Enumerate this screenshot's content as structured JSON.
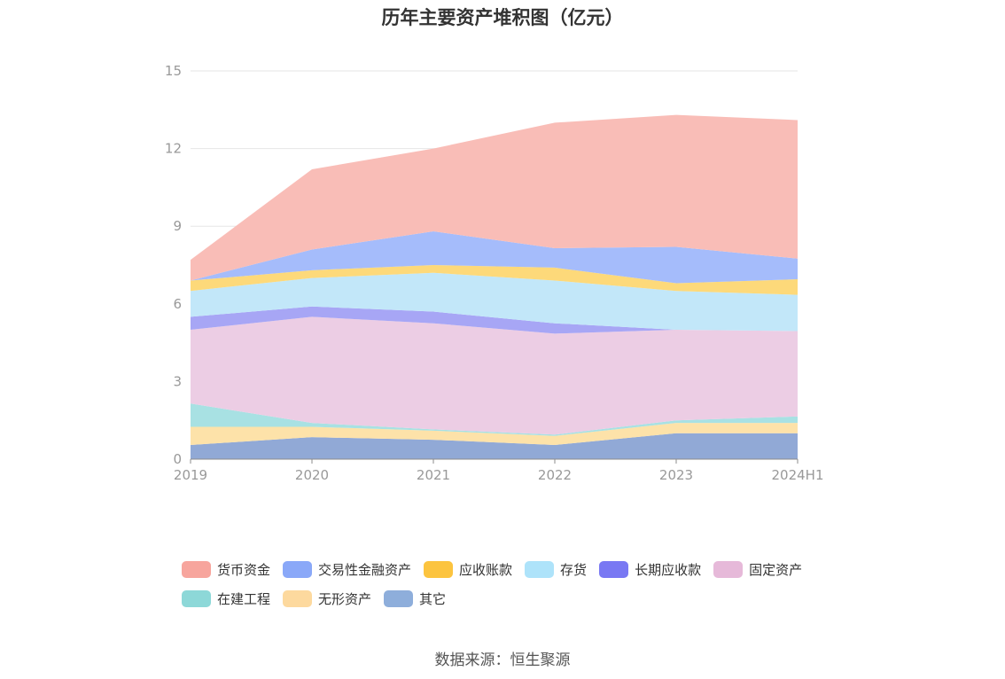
{
  "chart_data": {
    "type": "area",
    "stacked": true,
    "title": "历年主要资产堆积图（亿元）",
    "categories": [
      "2019",
      "2020",
      "2021",
      "2022",
      "2023",
      "2024H1"
    ],
    "ylim": [
      0,
      15
    ],
    "yticks": [
      0,
      3,
      6,
      9,
      12,
      15
    ],
    "grid": true,
    "legend_position": "bottom",
    "series": [
      {
        "name": "其它",
        "color": "#91a9d6",
        "values": [
          0.55,
          0.85,
          0.75,
          0.55,
          1.0,
          1.0
        ]
      },
      {
        "name": "无形资产",
        "color": "#fde2a9",
        "values": [
          0.7,
          0.4,
          0.35,
          0.35,
          0.4,
          0.4
        ]
      },
      {
        "name": "在建工程",
        "color": "#a8e1e3",
        "values": [
          0.9,
          0.15,
          0.05,
          0.05,
          0.1,
          0.25
        ]
      },
      {
        "name": "固定资产",
        "color": "#eccde4",
        "values": [
          2.85,
          4.1,
          4.1,
          3.9,
          3.5,
          3.3
        ]
      },
      {
        "name": "长期应收款",
        "color": "#a7a6f5",
        "values": [
          0.5,
          0.4,
          0.45,
          0.4,
          0.0,
          0.0
        ]
      },
      {
        "name": "存货",
        "color": "#c2e7f9",
        "values": [
          1.0,
          1.1,
          1.5,
          1.65,
          1.5,
          1.4
        ]
      },
      {
        "name": "应收账款",
        "color": "#fdd97a",
        "values": [
          0.4,
          0.3,
          0.3,
          0.5,
          0.3,
          0.6
        ]
      },
      {
        "name": "交易性金融资产",
        "color": "#a5bcfb",
        "values": [
          0.0,
          0.8,
          1.3,
          0.75,
          1.4,
          0.8
        ]
      },
      {
        "name": "货币资金",
        "color": "#f9bdb7",
        "values": [
          0.8,
          3.1,
          3.2,
          4.85,
          5.1,
          5.35
        ]
      }
    ]
  },
  "legend": [
    {
      "label": "货币资金",
      "color": "#f7a59d"
    },
    {
      "label": "交易性金融资产",
      "color": "#8aa8f8"
    },
    {
      "label": "应收账款",
      "color": "#fcc43f"
    },
    {
      "label": "存货",
      "color": "#aee3fa"
    },
    {
      "label": "长期应收款",
      "color": "#7978f3"
    },
    {
      "label": "固定资产",
      "color": "#e6b9d9"
    },
    {
      "label": "在建工程",
      "color": "#8dd8d8"
    },
    {
      "label": "无形资产",
      "color": "#fdd99e"
    },
    {
      "label": "其它",
      "color": "#8eaedb"
    }
  ],
  "source": "数据来源：恒生聚源"
}
